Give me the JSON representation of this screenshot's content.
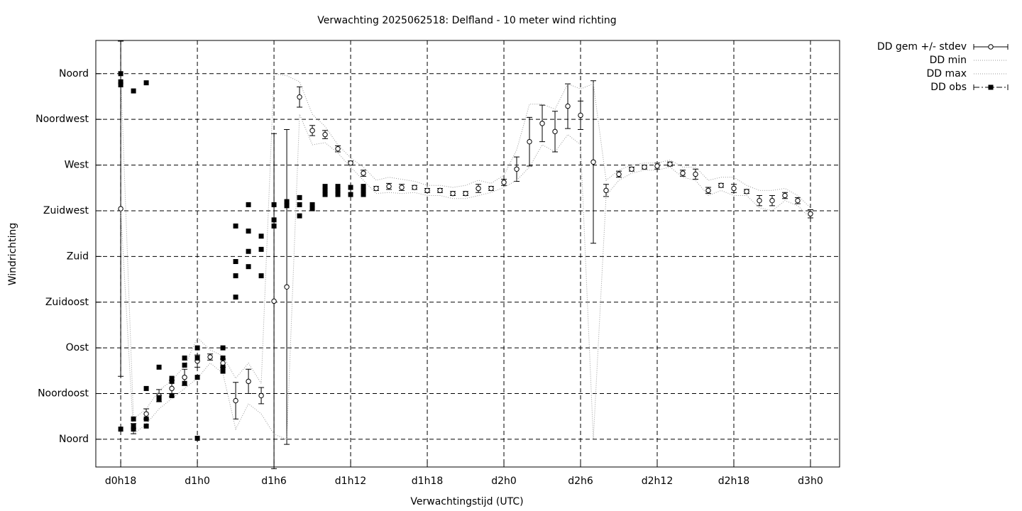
{
  "chart_data": {
    "type": "errorbar",
    "title": "Verwachting 2025062518: Delfland - 10 meter wind richting",
    "x_label": "Verwachtingstijd (UTC)",
    "y_label": "Windrichting",
    "xlim": [
      16.05,
      74.28
    ],
    "ylim": [
      -27.3,
      392.7
    ],
    "grid": true,
    "legend": "outside-top-right",
    "xticks": [
      {
        "value": 18,
        "label": "d0h18"
      },
      {
        "value": 24,
        "label": "d1h0"
      },
      {
        "value": 30,
        "label": "d1h6"
      },
      {
        "value": 36,
        "label": "d1h12"
      },
      {
        "value": 42,
        "label": "d1h18"
      },
      {
        "value": 48,
        "label": "d2h0"
      },
      {
        "value": 54,
        "label": "d2h6"
      },
      {
        "value": 60,
        "label": "d2h12"
      },
      {
        "value": 66,
        "label": "d2h18"
      },
      {
        "value": 72,
        "label": "d3h0"
      }
    ],
    "yticks": [
      {
        "value": 0,
        "label": "Noord"
      },
      {
        "value": 45,
        "label": "Noordoost"
      },
      {
        "value": 90,
        "label": "Oost"
      },
      {
        "value": 135,
        "label": "Zuidoost"
      },
      {
        "value": 180,
        "label": "Zuid"
      },
      {
        "value": 225,
        "label": "Zuidwest"
      },
      {
        "value": 270,
        "label": "West"
      },
      {
        "value": 315,
        "label": "Noordwest"
      },
      {
        "value": 360,
        "label": "Noord"
      }
    ],
    "x": [
      18,
      19,
      20,
      21,
      22,
      23,
      24,
      25,
      26,
      27,
      28,
      29,
      30,
      31,
      32,
      33,
      34,
      35,
      36,
      37,
      38,
      39,
      40,
      41,
      42,
      43,
      44,
      45,
      46,
      47,
      48,
      49,
      50,
      51,
      52,
      53,
      54,
      55,
      56,
      57,
      58,
      59,
      60,
      61,
      62,
      63,
      64,
      65,
      66,
      67,
      68,
      69,
      70,
      71,
      72
    ],
    "series": [
      {
        "name": "DD gem +/- stdev",
        "style": "errorbar",
        "color": "#000000",
        "values": [
          227,
          10.5,
          25,
          43,
          50,
          61,
          77,
          81,
          75,
          38,
          57,
          43,
          136,
          150,
          337,
          304,
          300,
          286,
          272,
          262,
          247,
          249,
          248,
          248,
          245,
          245,
          242,
          242,
          247,
          247,
          253,
          266,
          293,
          311,
          303,
          328,
          319,
          273,
          245,
          261,
          266,
          268,
          269,
          271,
          262,
          261,
          245,
          250,
          247,
          244,
          235,
          235,
          240,
          235,
          222
        ],
        "errors": [
          165,
          5,
          5,
          6,
          8,
          8,
          6,
          3,
          4,
          18,
          12,
          8,
          165,
          155,
          10,
          5,
          4,
          3,
          2,
          3,
          2,
          3,
          3,
          2,
          2,
          2,
          2,
          2,
          4,
          2,
          3,
          12,
          24,
          18,
          20,
          22,
          14,
          80,
          6,
          3,
          2,
          2,
          3,
          2,
          3,
          5,
          3,
          2,
          4,
          2,
          5,
          5,
          3,
          3,
          4
        ]
      },
      {
        "name": "DD min",
        "style": "dotted",
        "color": "#999999",
        "values": [
          225,
          5,
          15,
          30,
          40,
          50,
          60,
          75,
          65,
          10,
          35,
          25,
          5,
          0,
          320,
          290,
          292,
          282,
          268,
          255,
          242,
          243,
          242,
          243,
          240,
          240,
          237,
          237,
          240,
          243,
          248,
          255,
          268,
          290,
          283,
          300,
          290,
          0,
          240,
          255,
          262,
          265,
          265,
          268,
          258,
          255,
          240,
          245,
          240,
          240,
          228,
          225,
          235,
          230,
          218
        ]
      },
      {
        "name": "DD max",
        "style": "dotted",
        "color": "#999999",
        "values": [
          360,
          20,
          30,
          48,
          58,
          72,
          100,
          88,
          82,
          60,
          75,
          55,
          360,
          358,
          352,
          320,
          308,
          290,
          277,
          268,
          255,
          258,
          256,
          254,
          250,
          250,
          248,
          250,
          255,
          252,
          260,
          285,
          330,
          330,
          325,
          350,
          345,
          350,
          255,
          265,
          270,
          272,
          272,
          275,
          268,
          268,
          255,
          258,
          258,
          250,
          245,
          245,
          247,
          240,
          228
        ]
      },
      {
        "name": "DD obs",
        "style": "points",
        "color": "#000000",
        "x": [
          18,
          18,
          18,
          18,
          19,
          19,
          19,
          19,
          20,
          20,
          20,
          20,
          21,
          21,
          21,
          22,
          22,
          22,
          23,
          23,
          23,
          24,
          24,
          24,
          24,
          26,
          26,
          26,
          26,
          27,
          27,
          27,
          27,
          28,
          28,
          28,
          28,
          29,
          29,
          29,
          30,
          30,
          30,
          31,
          31,
          32,
          32,
          32,
          33,
          33,
          34,
          34,
          34,
          35,
          35,
          35,
          36,
          36,
          37,
          37,
          37
        ],
        "values": [
          360,
          352,
          349,
          10,
          343,
          20,
          13,
          10,
          351,
          50,
          20,
          13,
          71,
          41,
          39,
          60,
          57,
          43,
          80,
          73,
          55,
          90,
          80,
          61,
          1,
          90,
          80,
          71,
          67,
          210,
          175,
          161,
          140,
          231,
          205,
          185,
          170,
          200,
          187,
          161,
          231,
          216,
          210,
          234,
          230,
          238,
          231,
          220,
          231,
          227,
          249,
          245,
          241,
          249,
          245,
          241,
          248,
          241,
          249,
          245,
          241
        ]
      }
    ]
  }
}
